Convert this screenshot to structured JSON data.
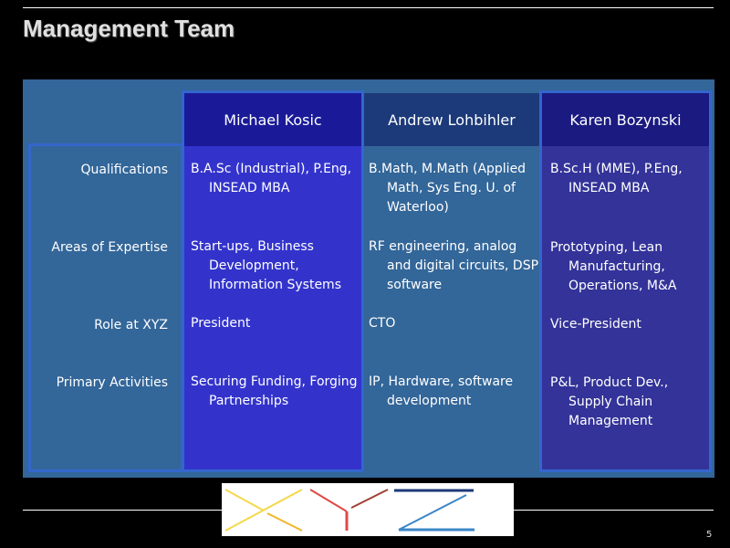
{
  "slide": {
    "title": "Management Team",
    "page_number": "5",
    "logo_text": "XYZ"
  },
  "row_labels": [
    "Qualifications",
    "Areas of Expertise",
    "Role at XYZ",
    "Primary Activities"
  ],
  "people": [
    {
      "name": "Michael Kosic",
      "cells": [
        "B.A.Sc (Industrial), P.Eng, INSEAD MBA",
        "Start-ups, Business Development, Information Systems",
        "President",
        "Securing Funding, Forging Partnerships"
      ]
    },
    {
      "name": "Andrew Lohbihler",
      "cells": [
        "B.Math, M.Math (Applied Math, Sys Eng. U. of Waterloo)",
        "RF engineering, analog and digital circuits, DSP software",
        "CTO",
        "IP, Hardware, software development"
      ]
    },
    {
      "name": "Karen Bozynski",
      "cells": [
        "B.Sc.H (MME), P.Eng, INSEAD MBA",
        "Prototyping, Lean Manufacturing, Operations, M&A",
        "Vice-President",
        "P&L, Product Dev., Supply Chain Management"
      ]
    }
  ],
  "colors": {
    "panel": "#336699",
    "highlight": "#3333cc",
    "header": "#1a1a99",
    "border": "#3366cc"
  }
}
